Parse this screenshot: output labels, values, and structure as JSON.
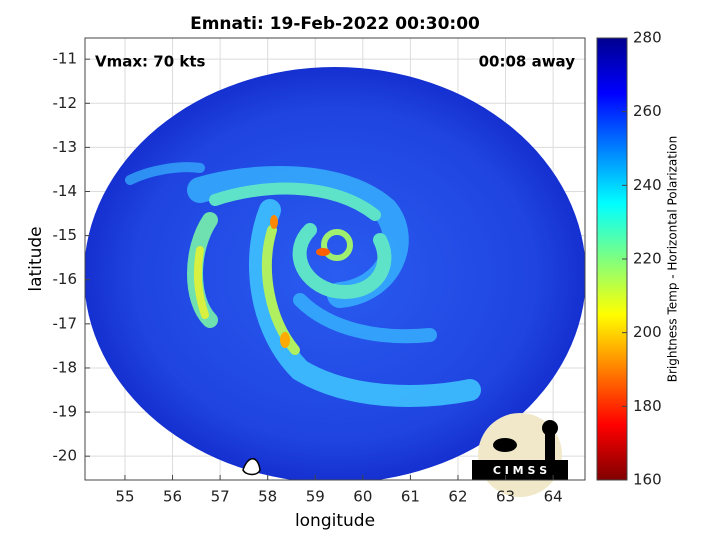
{
  "map": {
    "title": "Emnati: 19-Feb-2022 00:30:00",
    "annotations": {
      "left": "Vmax: 70 kts",
      "right": "00:08 away"
    },
    "xlabel": "longitude",
    "ylabel": "latitude",
    "xlim": [
      54.16,
      64.67
    ],
    "ylim": [
      -20.54,
      -10.52
    ],
    "xticks": [
      55,
      56,
      57,
      58,
      59,
      60,
      61,
      62,
      63,
      64
    ],
    "yticks": [
      -11,
      -12,
      -13,
      -14,
      -15,
      -16,
      -17,
      -18,
      -19,
      -20
    ],
    "grid": true,
    "colorbar": {
      "label": "Brightness Temp - Horizontal Polarization",
      "lim": [
        160,
        280
      ],
      "ticks": [
        160,
        180,
        200,
        220,
        240,
        260,
        280
      ]
    },
    "logo": "C I M S S"
  }
}
